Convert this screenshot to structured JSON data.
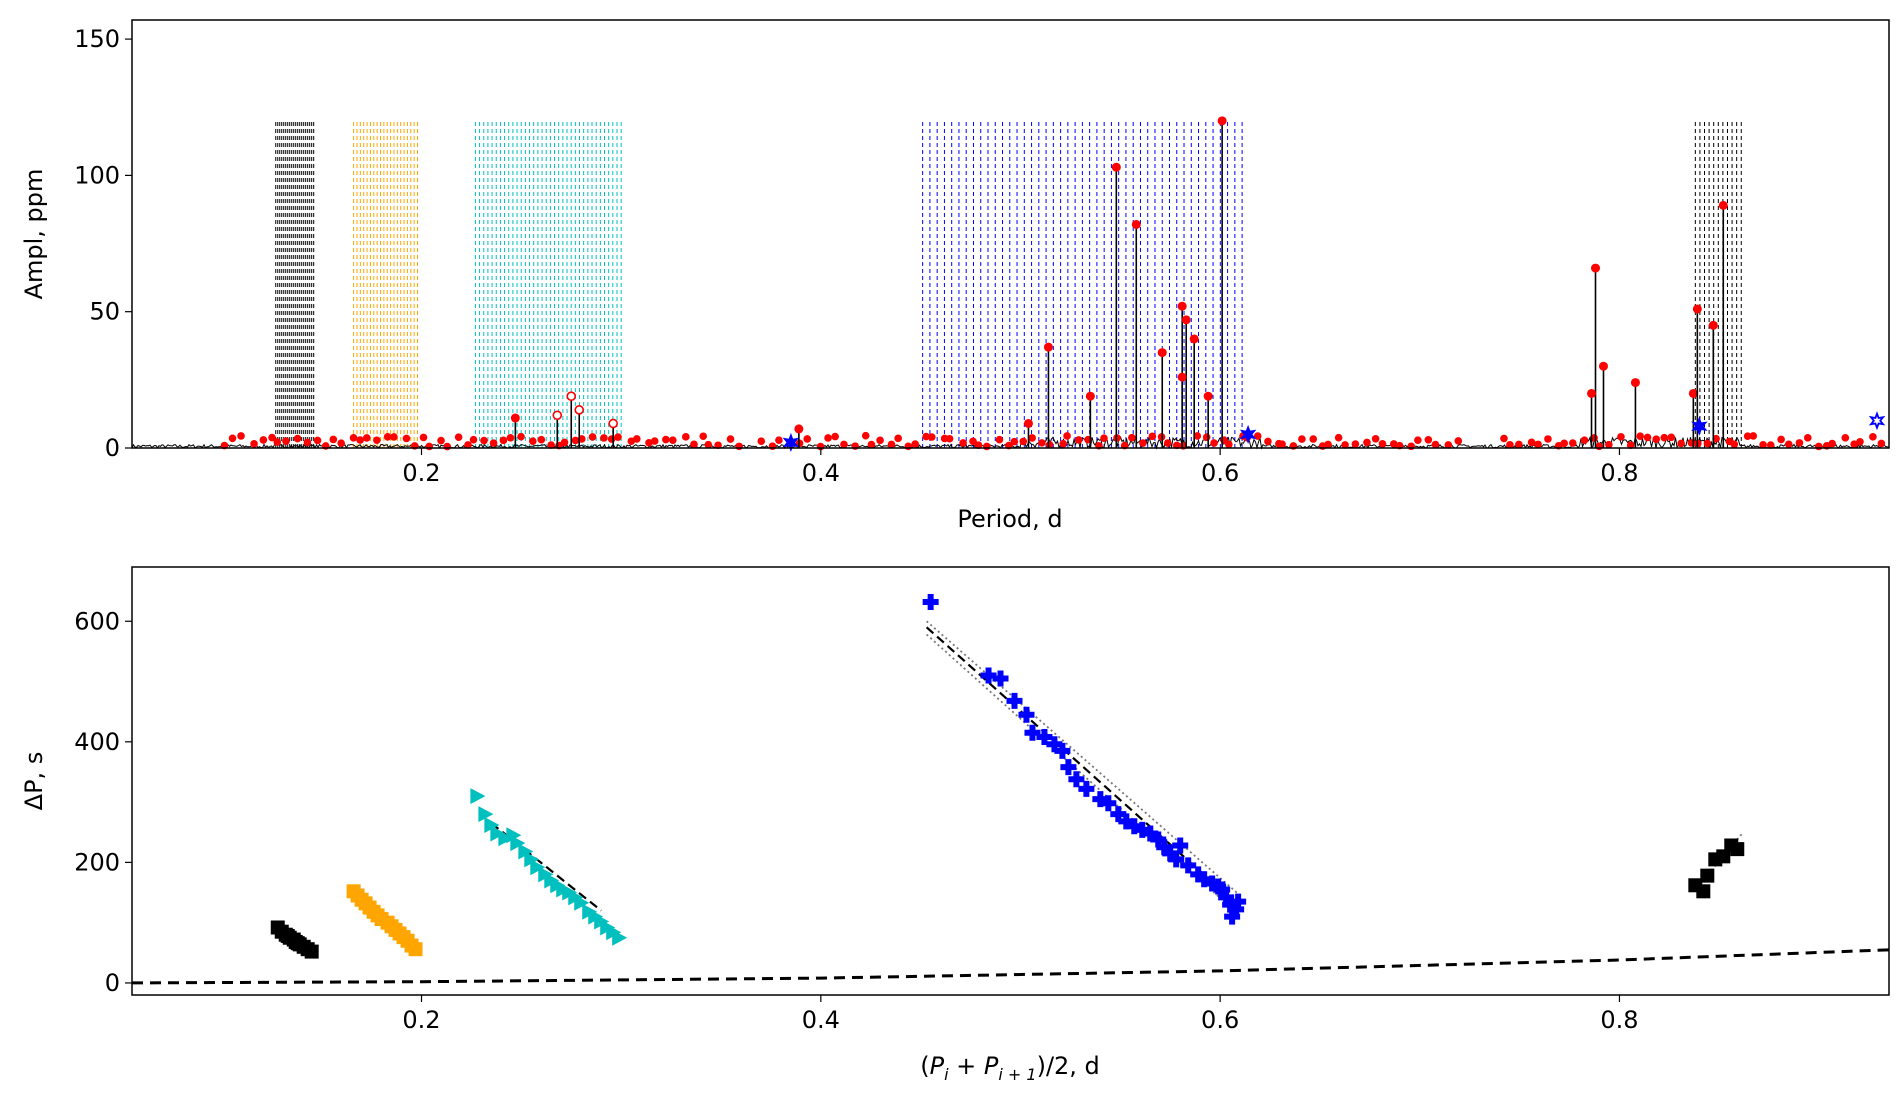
{
  "chart_data": [
    {
      "type": "line",
      "panel": "top",
      "title": "",
      "xlabel": "Period, d",
      "ylabel": "Ampl, ppm",
      "xlim": [
        0.055,
        0.935
      ],
      "ylim": [
        0,
        157
      ],
      "xticks": [
        0.2,
        0.4,
        0.6,
        0.8
      ],
      "xtick_labels": [
        "0.2",
        "0.4",
        "0.6",
        "0.8"
      ],
      "yticks": [
        0,
        50,
        100,
        150
      ],
      "ytick_labels": [
        "0",
        "50",
        "100",
        "150"
      ],
      "mode_line_top": 120,
      "mode_line_groups": [
        {
          "name": "group-1",
          "color": "#000000",
          "start": 0.127,
          "end": 0.146,
          "count": 20
        },
        {
          "name": "group-2",
          "color": "#FFA500",
          "start": 0.166,
          "end": 0.198,
          "count": 20
        },
        {
          "name": "group-3",
          "color": "#00BFBF",
          "start": 0.227,
          "end": 0.3,
          "count": 36
        },
        {
          "name": "group-4",
          "color": "#0000FF",
          "start": 0.451,
          "end": 0.611,
          "count": 45
        },
        {
          "name": "group-5",
          "color": "#000000",
          "start": 0.838,
          "end": 0.861,
          "count": 11
        }
      ],
      "peaks": [
        {
          "period": 0.247,
          "ampl": 11
        },
        {
          "period": 0.275,
          "ampl": 19,
          "open": true
        },
        {
          "period": 0.279,
          "ampl": 14,
          "open": true
        },
        {
          "period": 0.268,
          "ampl": 12,
          "open": true
        },
        {
          "period": 0.296,
          "ampl": 9,
          "open": true
        },
        {
          "period": 0.389,
          "ampl": 7
        },
        {
          "period": 0.504,
          "ampl": 9
        },
        {
          "period": 0.514,
          "ampl": 37
        },
        {
          "period": 0.535,
          "ampl": 19
        },
        {
          "period": 0.548,
          "ampl": 103
        },
        {
          "period": 0.558,
          "ampl": 82
        },
        {
          "period": 0.571,
          "ampl": 35
        },
        {
          "period": 0.581,
          "ampl": 52
        },
        {
          "period": 0.583,
          "ampl": 47
        },
        {
          "period": 0.587,
          "ampl": 40
        },
        {
          "period": 0.581,
          "ampl": 26
        },
        {
          "period": 0.594,
          "ampl": 19
        },
        {
          "period": 0.601,
          "ampl": 120
        },
        {
          "period": 0.788,
          "ampl": 66
        },
        {
          "period": 0.792,
          "ampl": 30
        },
        {
          "period": 0.808,
          "ampl": 24
        },
        {
          "period": 0.786,
          "ampl": 20
        },
        {
          "period": 0.837,
          "ampl": 20
        },
        {
          "period": 0.839,
          "ampl": 51
        },
        {
          "period": 0.847,
          "ampl": 45
        },
        {
          "period": 0.852,
          "ampl": 89
        }
      ],
      "blue_markers": [
        {
          "period": 0.385,
          "ampl": 2
        },
        {
          "period": 0.614,
          "ampl": 5
        },
        {
          "period": 0.84,
          "ampl": 8
        },
        {
          "period": 0.929,
          "ampl": 10
        }
      ]
    },
    {
      "type": "scatter",
      "panel": "bottom",
      "title": "",
      "xlabel_parts": [
        "(",
        "P",
        "i",
        " + ",
        "P",
        "i + 1",
        ")/2, d"
      ],
      "ylabel": "ΔP, s",
      "xlim": [
        0.055,
        0.935
      ],
      "ylim": [
        -20,
        690
      ],
      "xticks": [
        0.2,
        0.4,
        0.6,
        0.8
      ],
      "xtick_labels": [
        "0.2",
        "0.4",
        "0.6",
        "0.8"
      ],
      "yticks": [
        0,
        200,
        400,
        600
      ],
      "ytick_labels": [
        "0",
        "200",
        "400",
        "600"
      ],
      "series": [
        {
          "name": "black-squares-short",
          "marker": "square",
          "color": "#000000",
          "points": [
            [
              0.128,
              92
            ],
            [
              0.13,
              85
            ],
            [
              0.132,
              80
            ],
            [
              0.134,
              75
            ],
            [
              0.136,
              72
            ],
            [
              0.137,
              68
            ],
            [
              0.139,
              64
            ],
            [
              0.141,
              60
            ],
            [
              0.143,
              56
            ],
            [
              0.145,
              52
            ],
            [
              0.133,
              78
            ],
            [
              0.138,
              66
            ]
          ]
        },
        {
          "name": "orange-squares",
          "marker": "square",
          "color": "#FFA500",
          "points": [
            [
              0.166,
              152
            ],
            [
              0.168,
              145
            ],
            [
              0.17,
              138
            ],
            [
              0.172,
              132
            ],
            [
              0.174,
              125
            ],
            [
              0.176,
              118
            ],
            [
              0.178,
              112
            ],
            [
              0.18,
              106
            ],
            [
              0.183,
              100
            ],
            [
              0.185,
              94
            ],
            [
              0.187,
              88
            ],
            [
              0.189,
              82
            ],
            [
              0.191,
              76
            ],
            [
              0.193,
              70
            ],
            [
              0.195,
              62
            ],
            [
              0.197,
              56
            ]
          ]
        },
        {
          "name": "cyan-triangles",
          "marker": "triangle-right",
          "color": "#00BFBF",
          "points": [
            [
              0.228,
              310
            ],
            [
              0.232,
              280
            ],
            [
              0.235,
              262
            ],
            [
              0.238,
              248
            ],
            [
              0.242,
              240
            ],
            [
              0.246,
              245
            ],
            [
              0.248,
              232
            ],
            [
              0.252,
              218
            ],
            [
              0.255,
              205
            ],
            [
              0.258,
              192
            ],
            [
              0.262,
              180
            ],
            [
              0.265,
              170
            ],
            [
              0.268,
              162
            ],
            [
              0.271,
              155
            ],
            [
              0.274,
              150
            ],
            [
              0.277,
              142
            ],
            [
              0.28,
              133
            ],
            [
              0.284,
              118
            ],
            [
              0.287,
              110
            ],
            [
              0.29,
              102
            ],
            [
              0.293,
              92
            ],
            [
              0.296,
              84
            ],
            [
              0.299,
              75
            ]
          ]
        },
        {
          "name": "blue-crosses",
          "marker": "plus",
          "color": "#0000FF",
          "points": [
            [
              0.455,
              632
            ],
            [
              0.484,
              510
            ],
            [
              0.49,
              505
            ],
            [
              0.497,
              468
            ],
            [
              0.503,
              445
            ],
            [
              0.506,
              415
            ],
            [
              0.512,
              408
            ],
            [
              0.517,
              396
            ],
            [
              0.521,
              385
            ],
            [
              0.524,
              358
            ],
            [
              0.528,
              338
            ],
            [
              0.533,
              322
            ],
            [
              0.54,
              305
            ],
            [
              0.544,
              298
            ],
            [
              0.549,
              280
            ],
            [
              0.553,
              268
            ],
            [
              0.557,
              260
            ],
            [
              0.561,
              254
            ],
            [
              0.565,
              248
            ],
            [
              0.569,
              238
            ],
            [
              0.572,
              225
            ],
            [
              0.575,
              215
            ],
            [
              0.578,
              205
            ],
            [
              0.58,
              228
            ],
            [
              0.584,
              195
            ],
            [
              0.589,
              180
            ],
            [
              0.592,
              172
            ],
            [
              0.596,
              165
            ],
            [
              0.599,
              160
            ],
            [
              0.601,
              155
            ],
            [
              0.603,
              142
            ],
            [
              0.605,
              130
            ],
            [
              0.606,
              110
            ],
            [
              0.608,
              122
            ],
            [
              0.609,
              135
            ]
          ]
        },
        {
          "name": "black-squares-long",
          "marker": "square",
          "color": "#000000",
          "points": [
            [
              0.838,
              162
            ],
            [
              0.842,
              152
            ],
            [
              0.844,
              178
            ],
            [
              0.848,
              205
            ],
            [
              0.852,
              210
            ],
            [
              0.856,
              228
            ],
            [
              0.859,
              222
            ]
          ]
        }
      ],
      "fit_lines": [
        {
          "name": "blue-fit",
          "style": "dashed",
          "color": "#000000",
          "from": [
            0.453,
            590
          ],
          "to": [
            0.607,
            135
          ]
        },
        {
          "name": "blue-fit-upper",
          "style": "dotted",
          "color": "#777777",
          "from": [
            0.453,
            600
          ],
          "to": [
            0.609,
            148
          ]
        },
        {
          "name": "blue-fit-lower",
          "style": "dotted",
          "color": "#777777",
          "from": [
            0.453,
            578
          ],
          "to": [
            0.606,
            123
          ]
        },
        {
          "name": "cyan-fit",
          "style": "dashed",
          "color": "#000000",
          "from": [
            0.235,
            265
          ],
          "to": [
            0.29,
            120
          ]
        },
        {
          "name": "black-long-fit",
          "style": "dotted",
          "color": "#777777",
          "from": [
            0.838,
            155
          ],
          "to": [
            0.862,
            250
          ]
        }
      ],
      "reference_curve": {
        "name": "dashed-baseline",
        "style": "dashed",
        "color": "#000000",
        "points": [
          [
            0.055,
            0
          ],
          [
            0.2,
            2
          ],
          [
            0.4,
            8
          ],
          [
            0.6,
            20
          ],
          [
            0.8,
            38
          ],
          [
            0.935,
            55
          ]
        ]
      }
    }
  ]
}
